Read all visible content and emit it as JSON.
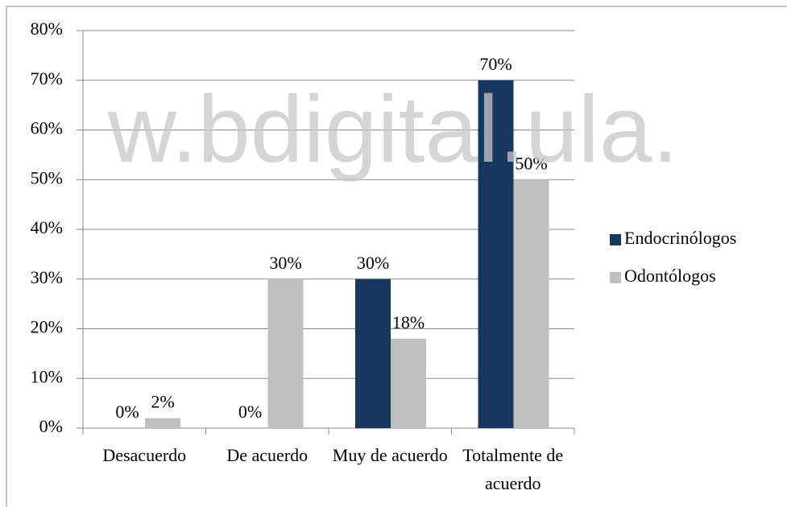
{
  "chart_data": {
    "type": "bar",
    "categories": [
      "Desacuerdo",
      "De acuerdo",
      "Muy de acuerdo",
      "Totalmente de acuerdo"
    ],
    "series": [
      {
        "name": "Endocrinólogos",
        "color": "#17375e",
        "values": [
          0,
          0,
          30,
          70
        ],
        "value_labels": [
          "0%",
          "0%",
          "30%",
          "70%"
        ]
      },
      {
        "name": "Odontólogos",
        "color": "#bfbfbf",
        "values": [
          2,
          30,
          18,
          50
        ],
        "value_labels": [
          "2%",
          "30%",
          "18%",
          "50%"
        ]
      }
    ],
    "ylim": [
      0,
      80
    ],
    "yticks": [
      {
        "value": 0,
        "label": "0%"
      },
      {
        "value": 10,
        "label": "10%"
      },
      {
        "value": 20,
        "label": "20%"
      },
      {
        "value": 30,
        "label": "30%"
      },
      {
        "value": 40,
        "label": "40%"
      },
      {
        "value": 50,
        "label": "50%"
      },
      {
        "value": 60,
        "label": "60%"
      },
      {
        "value": 70,
        "label": "70%"
      },
      {
        "value": 80,
        "label": "80%"
      }
    ],
    "grid": true,
    "legend": "right",
    "watermark": "w.bdigital.ula."
  }
}
